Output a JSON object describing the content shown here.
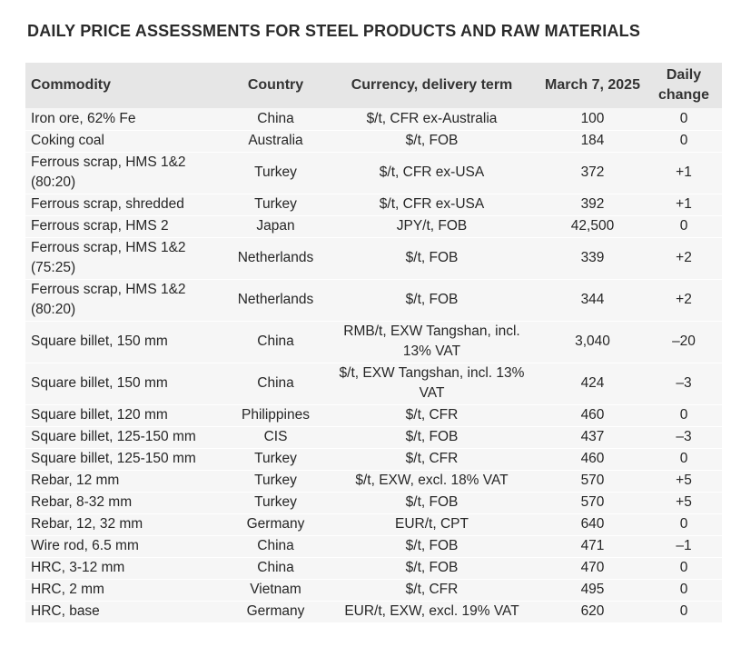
{
  "title": "DAILY PRICE ASSESSMENTS FOR STEEL PRODUCTS AND RAW MATERIALS",
  "table": {
    "headers": {
      "commodity": "Commodity",
      "country": "Country",
      "currency": "Currency, delivery term",
      "date": "March 7, 2025",
      "change": "Daily change"
    },
    "rows": [
      {
        "commodity": "Iron ore, 62% Fe",
        "country": "China",
        "currency": "$/t, CFR ex-Australia",
        "price": "100",
        "change": "0"
      },
      {
        "commodity": "Coking coal",
        "country": "Australia",
        "currency": "$/t, FOB",
        "price": "184",
        "change": "0"
      },
      {
        "commodity": "Ferrous scrap, HMS 1&2 (80:20)",
        "country": "Turkey",
        "currency": "$/t, CFR ex-USA",
        "price": "372",
        "change": "+1"
      },
      {
        "commodity": "Ferrous scrap, shredded",
        "country": "Turkey",
        "currency": "$/t, CFR ex-USA",
        "price": "392",
        "change": "+1"
      },
      {
        "commodity": "Ferrous scrap, HMS 2",
        "country": "Japan",
        "currency": "JPY/t, FOB",
        "price": "42,500",
        "change": "0"
      },
      {
        "commodity": "Ferrous scrap, HMS 1&2 (75:25)",
        "country": "Netherlands",
        "currency": "$/t, FOB",
        "price": "339",
        "change": "+2"
      },
      {
        "commodity": "Ferrous scrap, HMS 1&2 (80:20)",
        "country": "Netherlands",
        "currency": "$/t, FOB",
        "price": "344",
        "change": "+2"
      },
      {
        "commodity": "Square billet, 150 mm",
        "country": "China",
        "currency": "RMB/t, EXW Tangshan, incl. 13% VAT",
        "price": "3,040",
        "change": "–20"
      },
      {
        "commodity": "Square billet, 150 mm",
        "country": "China",
        "currency": "$/t, EXW Tangshan, incl. 13% VAT",
        "price": "424",
        "change": "–3"
      },
      {
        "commodity": "Square billet, 120 mm",
        "country": "Philippines",
        "currency": "$/t, CFR",
        "price": "460",
        "change": "0"
      },
      {
        "commodity": "Square billet, 125-150 mm",
        "country": "CIS",
        "currency": "$/t, FOB",
        "price": "437",
        "change": "–3"
      },
      {
        "commodity": "Square billet, 125-150 mm",
        "country": "Turkey",
        "currency": "$/t, CFR",
        "price": "460",
        "change": "0"
      },
      {
        "commodity": "Rebar, 12 mm",
        "country": "Turkey",
        "currency": "$/t, EXW, excl. 18% VAT",
        "price": "570",
        "change": "+5"
      },
      {
        "commodity": "Rebar, 8-32 mm",
        "country": "Turkey",
        "currency": "$/t, FOB",
        "price": "570",
        "change": "+5"
      },
      {
        "commodity": "Rebar, 12, 32 mm",
        "country": "Germany",
        "currency": "EUR/t, CPT",
        "price": "640",
        "change": "0"
      },
      {
        "commodity": "Wire rod, 6.5 mm",
        "country": "China",
        "currency": "$/t, FOB",
        "price": "471",
        "change": "–1"
      },
      {
        "commodity": "HRC, 3-12 mm",
        "country": "China",
        "currency": "$/t, FOB",
        "price": "470",
        "change": "0"
      },
      {
        "commodity": "HRC, 2 mm",
        "country": "Vietnam",
        "currency": "$/t, CFR",
        "price": "495",
        "change": "0"
      },
      {
        "commodity": "HRC, base",
        "country": "Germany",
        "currency": "EUR/t, EXW, excl. 19% VAT",
        "price": "620",
        "change": "0"
      }
    ]
  }
}
